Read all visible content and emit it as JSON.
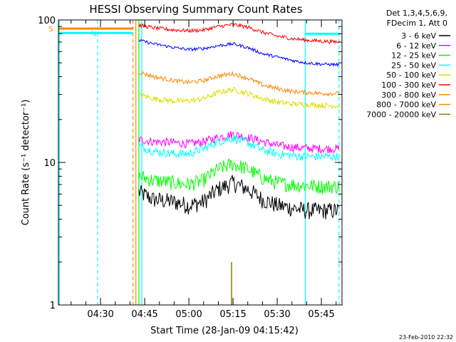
{
  "chart_data": {
    "type": "line",
    "title": "HESSI Observing Summary Count Rates",
    "xlabel": "Start Time (28-Jan-09 04:15:42)",
    "ylabel": "Count Rate (s⁻¹ detector⁻¹)",
    "yscale": "log",
    "ylim": [
      1,
      100
    ],
    "xlim": [
      "04:15:42",
      "05:52:00"
    ],
    "x_unit": "UT time",
    "xticks": [
      "04:30",
      "04:45",
      "05:00",
      "05:15",
      "05:30",
      "05:45"
    ],
    "yticks": [
      "1",
      "10",
      "100"
    ],
    "legend_position": "right",
    "legend_header": [
      "Det 1,3,4,5,6,9,",
      "FDecim 1, Att 0"
    ],
    "footer": "23-Feb-2010 22:32",
    "series": [
      {
        "name": "3 - 6 keV",
        "color": "#000000",
        "x": [
          "04:43",
          "04:48",
          "04:55",
          "05:00",
          "05:05",
          "05:10",
          "05:15",
          "05:20",
          "05:25",
          "05:30",
          "05:35",
          "05:40",
          "05:45",
          "05:51"
        ],
        "values": [
          6.2,
          5.5,
          5.3,
          5.0,
          5.3,
          6.5,
          7.2,
          6.5,
          5.5,
          5.0,
          4.8,
          4.6,
          4.6,
          4.6
        ]
      },
      {
        "name": "6 - 12 keV",
        "color": "#ff00ff",
        "x": [
          "04:43",
          "04:48",
          "04:55",
          "05:00",
          "05:05",
          "05:10",
          "05:15",
          "05:20",
          "05:25",
          "05:30",
          "05:35",
          "05:40",
          "05:45",
          "05:51"
        ],
        "values": [
          14.5,
          14.0,
          13.8,
          13.5,
          14.0,
          15.0,
          15.8,
          15.0,
          14.0,
          13.2,
          12.8,
          12.6,
          12.5,
          12.5
        ]
      },
      {
        "name": "12 - 25 keV",
        "color": "#00ff00",
        "x": [
          "04:43",
          "04:48",
          "04:55",
          "05:00",
          "05:05",
          "05:10",
          "05:15",
          "05:20",
          "05:25",
          "05:30",
          "05:35",
          "05:40",
          "05:45",
          "05:51"
        ],
        "values": [
          8.0,
          7.5,
          7.2,
          7.0,
          7.5,
          9.0,
          9.8,
          9.0,
          7.8,
          7.2,
          7.0,
          6.9,
          6.8,
          6.8
        ]
      },
      {
        "name": "25 - 50 keV",
        "color": "#00ffff",
        "x": [
          "04:43",
          "04:48",
          "04:55",
          "05:00",
          "05:05",
          "05:10",
          "05:15",
          "05:20",
          "05:25",
          "05:30",
          "05:35",
          "05:40",
          "05:45",
          "05:51"
        ],
        "values": [
          13.0,
          12.0,
          11.5,
          11.5,
          12.5,
          14.0,
          14.8,
          13.8,
          12.2,
          11.5,
          11.2,
          11.0,
          11.0,
          11.0
        ]
      },
      {
        "name": "50 - 100 keV",
        "color": "#dddd00",
        "x": [
          "04:43",
          "04:48",
          "04:55",
          "05:00",
          "05:05",
          "05:10",
          "05:15",
          "05:20",
          "05:25",
          "05:30",
          "05:35",
          "05:40",
          "05:45",
          "05:51"
        ],
        "values": [
          30.0,
          28.0,
          27.0,
          27.0,
          28.0,
          31.0,
          32.5,
          30.5,
          28.0,
          26.5,
          25.8,
          25.5,
          25.2,
          25.0
        ]
      },
      {
        "name": "100 - 300 keV",
        "color": "#ff0000",
        "x": [
          "04:43",
          "04:48",
          "04:55",
          "05:00",
          "05:05",
          "05:10",
          "05:15",
          "05:20",
          "05:25",
          "05:30",
          "05:35",
          "05:40",
          "05:45",
          "05:51"
        ],
        "values": [
          92.0,
          88.0,
          85.0,
          84.0,
          85.0,
          90.0,
          93.0,
          89.0,
          82.0,
          77.0,
          74.0,
          72.0,
          71.0,
          70.0
        ]
      },
      {
        "name": "300 - 800 keV",
        "color": "#ff8800",
        "x": [
          "04:43",
          "04:48",
          "04:55",
          "05:00",
          "05:05",
          "05:10",
          "05:15",
          "05:20",
          "05:25",
          "05:30",
          "05:35",
          "05:40",
          "05:45",
          "05:51"
        ],
        "values": [
          43.0,
          40.0,
          37.5,
          36.5,
          37.5,
          40.5,
          42.0,
          39.0,
          35.0,
          33.0,
          31.5,
          31.0,
          30.5,
          30.5
        ]
      },
      {
        "name": "800 - 7000 keV",
        "color": "#ff8800",
        "x": [],
        "values": []
      },
      {
        "name": "7000 - 20000 keV",
        "color": "#808000",
        "x": [
          "05:13",
          "05:14",
          "05:15",
          "05:16"
        ],
        "values": [
          1.0,
          1.6,
          2.0,
          1.0
        ]
      }
    ],
    "extra_series_unlisted": [
      {
        "color": "#0000ff",
        "x": [
          "04:43",
          "04:48",
          "04:55",
          "05:00",
          "05:05",
          "05:10",
          "05:15",
          "05:20",
          "05:25",
          "05:30",
          "05:35",
          "05:40",
          "05:45",
          "05:51"
        ],
        "values": [
          72.0,
          68.0,
          64.0,
          62.0,
          63.0,
          66.0,
          68.0,
          64.0,
          58.0,
          55.0,
          52.0,
          50.0,
          49.0,
          48.5
        ]
      }
    ],
    "flags": [
      {
        "label": "S",
        "color": "#ff8800",
        "x": [
          "04:15:42",
          "04:41:00"
        ],
        "value": 87
      },
      {
        "label": "N",
        "color": "#00ffff",
        "x": [
          "04:15:42",
          "04:25:00",
          "04:41:00"
        ],
        "value": 81
      },
      {
        "label": "",
        "color": "#00ffff",
        "x": [
          "05:39:30",
          "05:51:00"
        ],
        "value": 80
      }
    ],
    "vlines": [
      {
        "x": "04:16:00",
        "color": "#00ffff",
        "style": "solid"
      },
      {
        "x": "04:29:00",
        "color": "#00ffff",
        "style": "dashed"
      },
      {
        "x": "04:41:00",
        "color": "#ff8800",
        "style": "dashed"
      },
      {
        "x": "04:42:00",
        "color": "#ff8800",
        "style": "solid"
      },
      {
        "x": "04:43:00",
        "color": "#00ff00",
        "style": "solid"
      },
      {
        "x": "04:44:00",
        "color": "#00ffff",
        "style": "solid"
      },
      {
        "x": "05:39:30",
        "color": "#00ffff",
        "style": "solid"
      },
      {
        "x": "05:51:00",
        "color": "#00ffff",
        "style": "dashed"
      }
    ]
  }
}
